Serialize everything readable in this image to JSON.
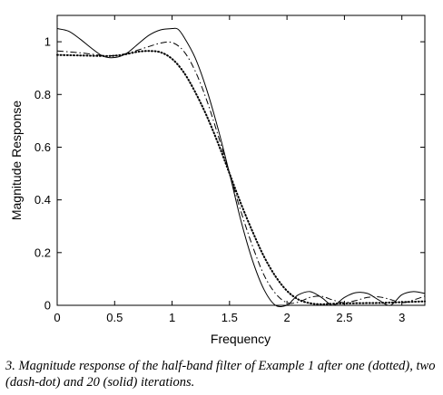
{
  "chart_data": {
    "type": "line",
    "xlabel": "Frequency",
    "ylabel": "Magnitude Response",
    "xlim": [
      0,
      3.2
    ],
    "ylim": [
      0,
      1.1
    ],
    "x_ticks": [
      "0",
      "0.5",
      "1",
      "1.5",
      "2",
      "2.5",
      "3"
    ],
    "y_ticks": [
      "0",
      "0.2",
      "0.4",
      "0.6",
      "0.8",
      "1"
    ],
    "grid": false,
    "legend": "none",
    "series": [
      {
        "style": "dotted",
        "x": [
          0,
          0.2,
          0.4,
          0.5,
          0.6,
          0.7,
          0.8,
          0.9,
          1.0,
          1.1,
          1.2,
          1.3,
          1.4,
          1.5,
          1.6,
          1.7,
          1.8,
          1.9,
          2.0,
          2.1,
          2.2,
          2.3,
          2.4,
          2.6,
          2.8,
          3.0,
          3.2
        ],
        "y": [
          0.95,
          0.948,
          0.946,
          0.947,
          0.953,
          0.962,
          0.965,
          0.96,
          0.935,
          0.885,
          0.81,
          0.72,
          0.615,
          0.5,
          0.385,
          0.28,
          0.185,
          0.11,
          0.055,
          0.022,
          0.008,
          0.004,
          0.006,
          0.008,
          0.009,
          0.012,
          0.015
        ]
      },
      {
        "style": "dash-dot",
        "x": [
          0,
          0.2,
          0.4,
          0.5,
          0.6,
          0.7,
          0.8,
          0.9,
          1.0,
          1.1,
          1.2,
          1.3,
          1.4,
          1.5,
          1.6,
          1.7,
          1.8,
          1.9,
          2.0,
          2.1,
          2.2,
          2.3,
          2.4,
          2.5,
          2.6,
          2.7,
          2.8,
          2.9,
          3.0,
          3.1,
          3.2
        ],
        "y": [
          0.965,
          0.958,
          0.948,
          0.948,
          0.955,
          0.968,
          0.982,
          0.995,
          0.997,
          0.965,
          0.89,
          0.78,
          0.645,
          0.5,
          0.355,
          0.225,
          0.115,
          0.045,
          0.01,
          0.012,
          0.03,
          0.034,
          0.02,
          0.01,
          0.018,
          0.03,
          0.032,
          0.022,
          0.01,
          0.02,
          0.035
        ]
      },
      {
        "style": "solid",
        "x": [
          0,
          0.1,
          0.2,
          0.3,
          0.4,
          0.5,
          0.6,
          0.7,
          0.8,
          0.9,
          1.0,
          1.05,
          1.1,
          1.2,
          1.3,
          1.4,
          1.5,
          1.6,
          1.7,
          1.8,
          1.9,
          2.0,
          2.05,
          2.1,
          2.2,
          2.3,
          2.4,
          2.5,
          2.6,
          2.7,
          2.8,
          2.9,
          3.0,
          3.1,
          3.2
        ],
        "y": [
          1.05,
          1.04,
          1.01,
          0.975,
          0.945,
          0.94,
          0.955,
          0.99,
          1.025,
          1.045,
          1.05,
          1.048,
          1.02,
          0.94,
          0.82,
          0.67,
          0.5,
          0.32,
          0.17,
          0.06,
          0.0,
          0.0,
          0.02,
          0.04,
          0.052,
          0.03,
          0.0,
          0.03,
          0.048,
          0.045,
          0.02,
          0.0,
          0.04,
          0.052,
          0.045
        ]
      }
    ]
  },
  "caption": "3. Magnitude response of the half-band filter of Example 1 after one (dotted), two (dash-dot) and 20 (solid) iterations."
}
